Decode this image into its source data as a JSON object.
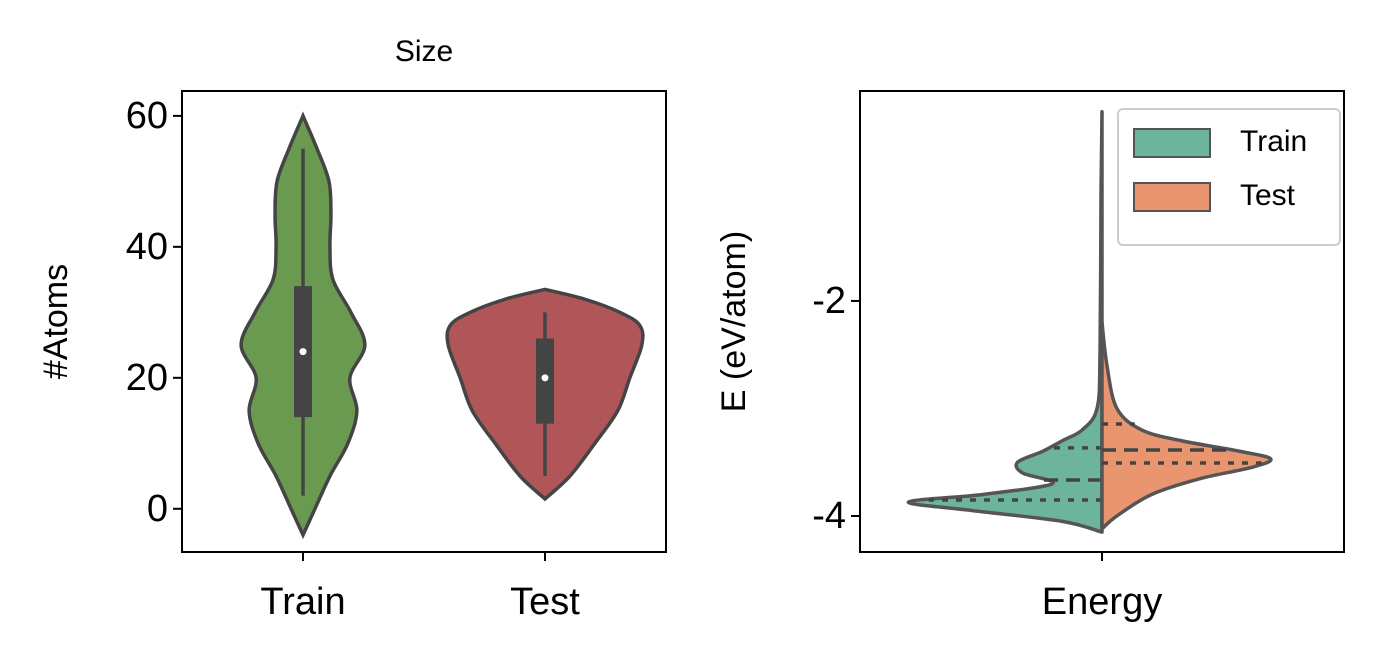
{
  "chart_data": [
    {
      "type": "violin",
      "title": "Size",
      "ylabel": "#Atoms",
      "categories": [
        "Train",
        "Test"
      ],
      "ylim": [
        -6.6,
        63.8
      ],
      "yticks": [
        0,
        20,
        40,
        60
      ],
      "series": [
        {
          "color": "#6a9a50",
          "density": {
            "y": [
              -4,
              0,
              5,
              10,
              15,
              20,
              25,
              30,
              35,
              40,
              45,
              50,
              55,
              60
            ],
            "width": [
              0,
              12,
              27,
              45,
              54,
              47,
              62,
              48,
              30,
              27,
              28,
              26,
              14,
              0
            ]
          },
          "quartiles": [
            14,
            24,
            34
          ],
          "whiskers": [
            2,
            55
          ]
        },
        {
          "color": "#b05558",
          "density": {
            "y": [
              1.5,
              5,
              10,
              15,
              20,
              25,
              28,
              30,
              32,
              33.5
            ],
            "width": [
              0,
              25,
              50,
              73,
              85,
              97,
              95,
              75,
              40,
              0
            ]
          },
          "quartiles": [
            13,
            20,
            26
          ],
          "whiskers": [
            5,
            30
          ]
        }
      ]
    },
    {
      "type": "split_violin",
      "ylabel": "E (eV/atom)",
      "categories": [
        "Energy"
      ],
      "ylim": [
        -4.335,
        -0.047
      ],
      "yticks": [
        -4,
        -2
      ],
      "legend": "upper right",
      "series": [
        {
          "name": "Train",
          "color": "#6db49c",
          "density": {
            "y": [
              -4.15,
              -4.05,
              -3.95,
              -3.87,
              -3.8,
              -3.7,
              -3.6,
              -3.5,
              -3.4,
              -3.3,
              -3.2,
              -3.0,
              -2.5,
              -1.0,
              -0.24
            ],
            "width": [
              0,
              40,
              130,
              195,
              120,
              50,
              80,
              85,
              60,
              40,
              20,
              5,
              2,
              1,
              0
            ]
          },
          "quartiles": [
            -3.851,
            -3.665,
            -3.367
          ]
        },
        {
          "name": "Test",
          "color": "#e9956f",
          "density": {
            "y": [
              -4.12,
              -4.0,
              -3.8,
              -3.65,
              -3.55,
              -3.47,
              -3.4,
              -3.3,
              -3.2,
              -3.0,
              -2.6,
              -2.2
            ],
            "width": [
              0,
              15,
              50,
              100,
              150,
              170,
              140,
              80,
              40,
              15,
              5,
              0
            ]
          },
          "quartiles": [
            -3.507,
            -3.386,
            -3.144
          ]
        }
      ]
    }
  ]
}
